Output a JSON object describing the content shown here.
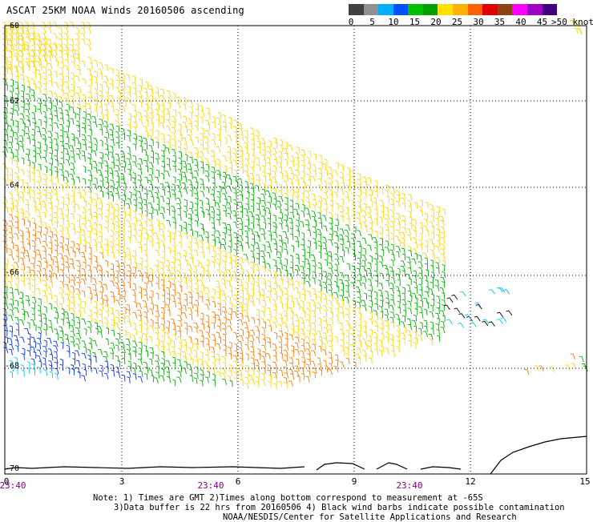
{
  "title": "ASCAT 25KM NOAA Winds 20160506 ascending",
  "legend": {
    "colors": [
      "#404040",
      "#909090",
      "#00b0ff",
      "#0050ff",
      "#00c000",
      "#00a000",
      "#ffe000",
      "#ffb000",
      "#ff6000",
      "#e00000",
      "#8b4513",
      "#ff00ff",
      "#a000c0",
      "#400080"
    ],
    "labels": [
      "0",
      "5",
      "10",
      "15",
      "20",
      "25",
      "30",
      "35",
      "40",
      "45"
    ],
    "unit": ">50 knots"
  },
  "axes": {
    "lat_labels": [
      "-60",
      "-62",
      "-64",
      "-66",
      "-68",
      "-70"
    ],
    "lon_labels": [
      "0",
      "3",
      "6",
      "9",
      "12",
      "15"
    ],
    "time_labels": [
      "23:40",
      "23:40",
      "23:40"
    ]
  },
  "notes": {
    "line1": "Note: 1) Times are GMT 2)Times along bottom correspond to measurement at -65S",
    "line2": "3)Data buffer is 22 hrs from 20160506 4) Black wind barbs indicate possible contamination",
    "line3": "NOAA/NESDIS/Center for Satellite Applications and Research"
  }
}
